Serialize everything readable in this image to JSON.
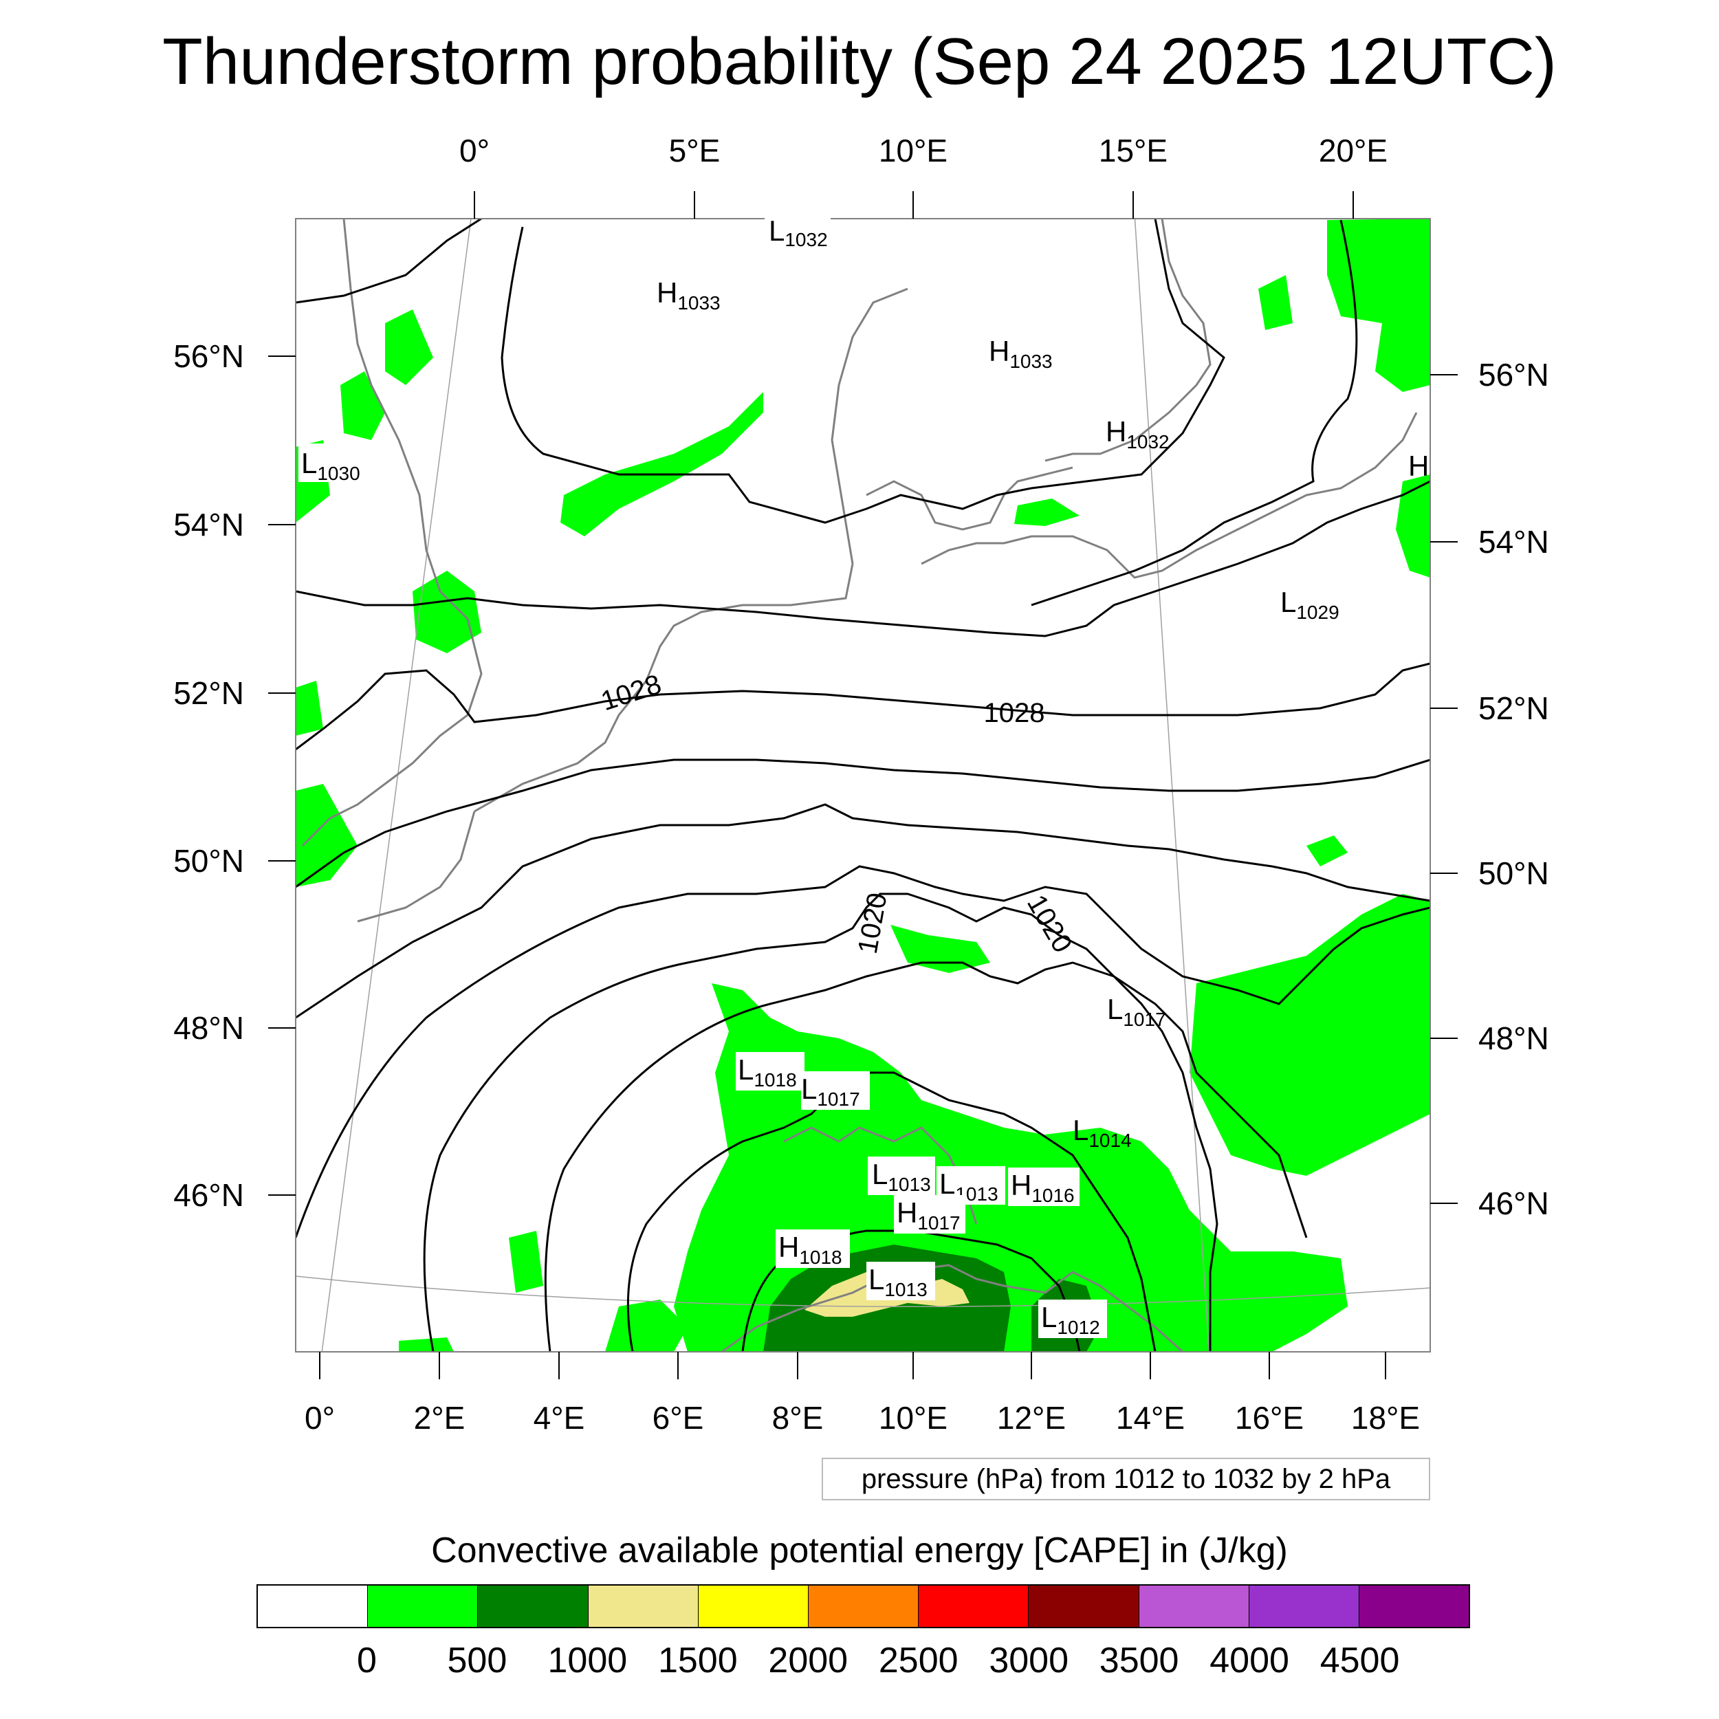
{
  "title": "Thunderstorm probability (Sep 24 2025 12UTC)",
  "map": {
    "top_lon_labels": [
      "0°",
      "5°E",
      "10°E",
      "15°E",
      "20°E"
    ],
    "bottom_lon_labels": [
      "0°",
      "2°E",
      "4°E",
      "6°E",
      "8°E",
      "10°E",
      "12°E",
      "14°E",
      "16°E",
      "18°E"
    ],
    "left_lat_labels": [
      "56°N",
      "54°N",
      "52°N",
      "50°N",
      "48°N",
      "46°N"
    ],
    "right_lat_labels": [
      "56°N",
      "54°N",
      "52°N",
      "50°N",
      "48°N",
      "46°N"
    ],
    "contour_labels": [
      "1028",
      "1028",
      "1020",
      "1020"
    ],
    "pressure_centers": [
      {
        "type": "L",
        "value": "1032"
      },
      {
        "type": "H",
        "value": "1033"
      },
      {
        "type": "H",
        "value": "1033"
      },
      {
        "type": "H",
        "value": "1032"
      },
      {
        "type": "L",
        "value": "1030"
      },
      {
        "type": "H",
        "value": ""
      },
      {
        "type": "L",
        "value": "1029"
      },
      {
        "type": "L",
        "value": "1017"
      },
      {
        "type": "L",
        "value": "1018"
      },
      {
        "type": "L",
        "value": "1017"
      },
      {
        "type": "L",
        "value": "1014"
      },
      {
        "type": "L",
        "value": "1013"
      },
      {
        "type": "L",
        "value": "1013"
      },
      {
        "type": "H",
        "value": "1016"
      },
      {
        "type": "H",
        "value": "1017"
      },
      {
        "type": "H",
        "value": "1018"
      },
      {
        "type": "L",
        "value": "1013"
      },
      {
        "type": "L",
        "value": "1012"
      }
    ],
    "colors": {
      "cape_0_500": "#00ff00",
      "cape_500_1000": "#008000",
      "cape_1000_1500": "#f0e68c",
      "coastline": "#808080",
      "isobar": "#000000"
    }
  },
  "pressure_note": "pressure (hPa) from 1012 to 1032 by 2 hPa",
  "colorbar": {
    "title": "Convective available potential energy [CAPE] in (J/kg)",
    "colors": [
      "#ffffff",
      "#00ff00",
      "#008000",
      "#f0e68c",
      "#ffff00",
      "#ff8000",
      "#ff0000",
      "#8b0000",
      "#ba55d3",
      "#9932cc",
      "#8b008b"
    ],
    "labels": [
      "0",
      "500",
      "1000",
      "1500",
      "2000",
      "2500",
      "3000",
      "3500",
      "4000",
      "4500"
    ]
  }
}
